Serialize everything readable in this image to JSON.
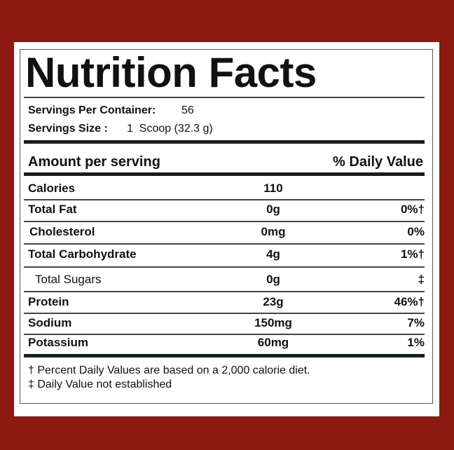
{
  "title": "Nutrition Facts",
  "servings": {
    "per_container_label": "Servings Per Container:",
    "per_container_value": "56",
    "size_label": "Servings Size :",
    "size_value": "1  Scoop (32.3 g)"
  },
  "header": {
    "amount": "Amount per serving",
    "daily_value": "% Daily Value"
  },
  "rows": [
    {
      "name": "Calories",
      "amount": "110"
    },
    {
      "name": "Total Fat",
      "amount": "0g",
      "dv": "0%†"
    },
    {
      "name": "Cholesterol",
      "amount": "0mg",
      "dv": "0%"
    },
    {
      "name": "Total Carbohydrate",
      "amount": "4g",
      "dv": "1%†"
    },
    {
      "name": "Total Sugars",
      "amount": "0g",
      "dv": "‡"
    },
    {
      "name": "Protein",
      "amount": "23g",
      "dv": "46%†"
    },
    {
      "name": "Sodium",
      "amount": "150mg",
      "dv": "7%"
    },
    {
      "name": "Potassium",
      "amount": "60mg",
      "dv": "1%"
    }
  ],
  "footnotes": [
    "† Percent Daily Values are based on a 2,000 calorie diet.",
    "‡ Daily Value not established"
  ]
}
